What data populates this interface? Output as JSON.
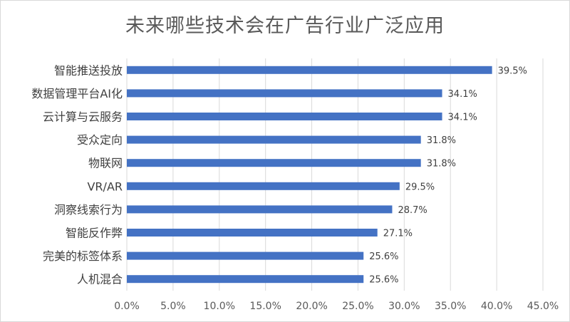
{
  "chart_data": {
    "type": "bar",
    "orientation": "horizontal",
    "title": "未来哪些技术会在广告行业广泛应用",
    "categories": [
      "智能推送投放",
      "数据管理平台AI化",
      "云计算与云服务",
      "受众定向",
      "物联网",
      "VR/AR",
      "洞察线索行为",
      "智能反作弊",
      "完美的标签体系",
      "人机混合"
    ],
    "values": [
      39.5,
      34.1,
      34.1,
      31.8,
      31.8,
      29.5,
      28.7,
      27.1,
      25.6,
      25.6
    ],
    "value_labels": [
      "39.5%",
      "34.1%",
      "34.1%",
      "31.8%",
      "31.8%",
      "29.5%",
      "28.7%",
      "27.1%",
      "25.6%",
      "25.6%"
    ],
    "xlim": [
      0,
      45
    ],
    "xticks": [
      0,
      5,
      10,
      15,
      20,
      25,
      30,
      35,
      40,
      45
    ],
    "xtick_labels": [
      "0.0%",
      "5.0%",
      "10.0%",
      "15.0%",
      "20.0%",
      "25.0%",
      "30.0%",
      "35.0%",
      "40.0%",
      "45.0%"
    ],
    "xlabel": "",
    "ylabel": "",
    "grid": "vertical",
    "legend": "none",
    "bar_color": "#4472C4",
    "grid_color": "#d9d9d9"
  }
}
